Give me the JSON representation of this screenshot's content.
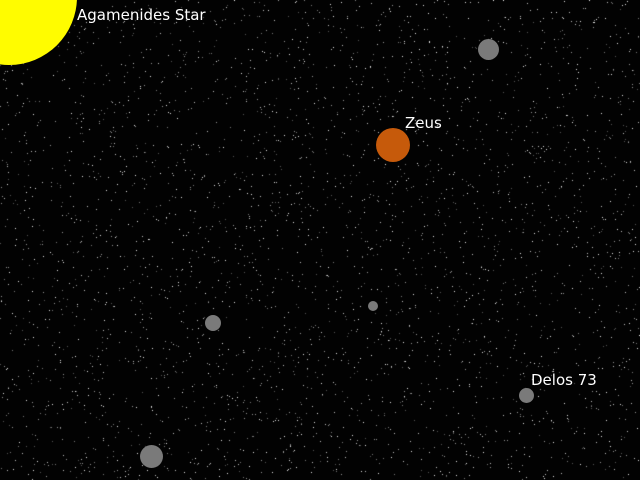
{
  "space_map": {
    "background_color": "#020202",
    "star_color": "#9a9a9a",
    "bodies": {
      "agamenides_star": {
        "name": "Agamenides Star",
        "type": "star",
        "color": "#fffc00"
      },
      "zeus": {
        "name": "Zeus",
        "type": "planet",
        "color": "#c65a0b"
      },
      "delos_73": {
        "name": "Delos 73",
        "type": "planet",
        "color": "#7a7a7a"
      },
      "unlabeled_planet_a": {
        "type": "planet",
        "color": "#7a7a7a"
      },
      "unlabeled_planet_b": {
        "type": "planet",
        "color": "#7a7a7a"
      },
      "unlabeled_planet_c": {
        "type": "planet",
        "color": "#7a7a7a"
      },
      "unlabeled_planet_d": {
        "type": "planet",
        "color": "#7a7a7a"
      }
    }
  }
}
